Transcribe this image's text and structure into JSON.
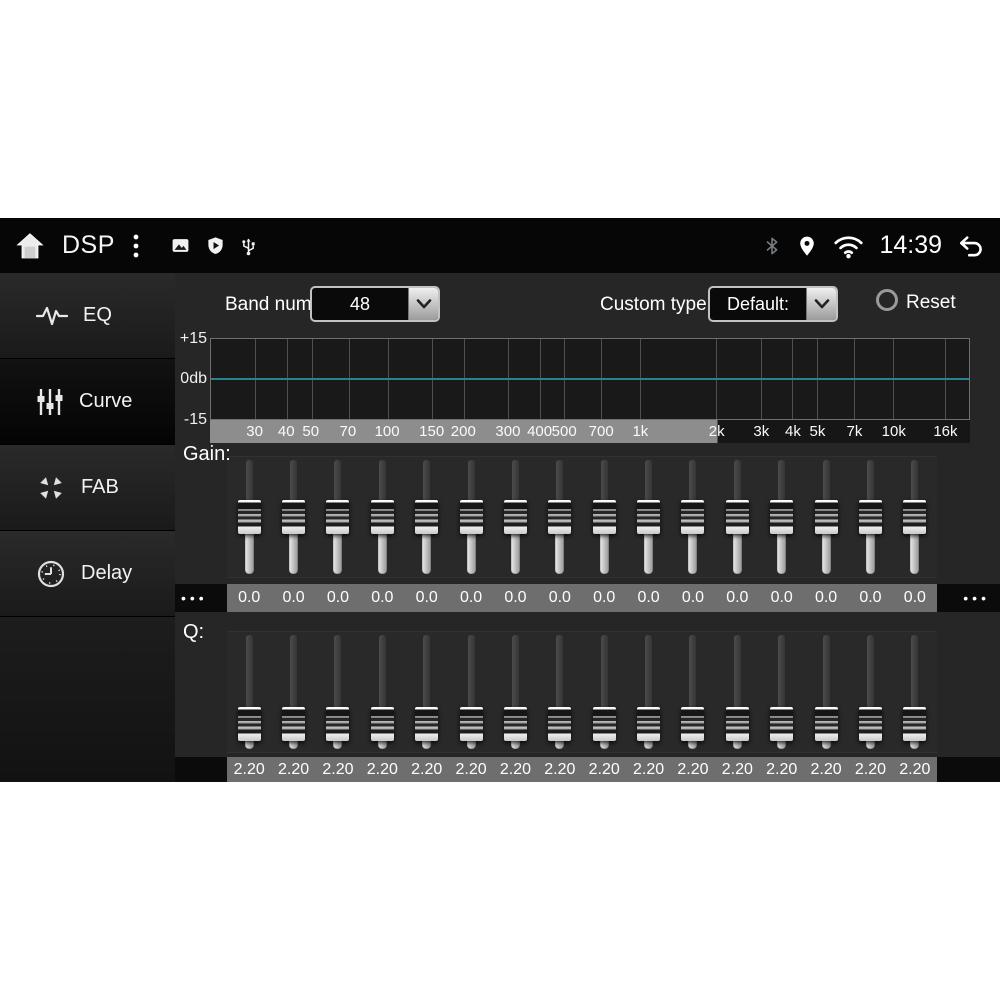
{
  "status_bar": {
    "title": "DSP",
    "time": "14:39"
  },
  "sidebar": {
    "items": [
      {
        "label": "EQ",
        "selected": false
      },
      {
        "label": "Curve",
        "selected": true
      },
      {
        "label": "FAB",
        "selected": false
      },
      {
        "label": "Delay",
        "selected": false
      }
    ]
  },
  "controls": {
    "band_num_label": "Band num:",
    "band_num_value": "48",
    "custom_type_label": "Custom type:",
    "custom_type_value": "Default:",
    "reset_label": "Reset"
  },
  "graph": {
    "y_axis_labels": [
      "+15",
      "0db",
      "-15"
    ],
    "freqs": [
      {
        "f": 30,
        "label": "30"
      },
      {
        "f": 40,
        "label": "40"
      },
      {
        "f": 50,
        "label": "50"
      },
      {
        "f": 70,
        "label": "70"
      },
      {
        "f": 100,
        "label": "100"
      },
      {
        "f": 150,
        "label": "150"
      },
      {
        "f": 200,
        "label": "200"
      },
      {
        "f": 300,
        "label": "300"
      },
      {
        "f": 400,
        "label": "400"
      },
      {
        "f": 500,
        "label": "500"
      },
      {
        "f": 700,
        "label": "700"
      },
      {
        "f": 1000,
        "label": "1k"
      },
      {
        "f": 2000,
        "label": "2k"
      },
      {
        "f": 3000,
        "label": "3k"
      },
      {
        "f": 4000,
        "label": "4k"
      },
      {
        "f": 5000,
        "label": "5k"
      },
      {
        "f": 7000,
        "label": "7k"
      },
      {
        "f": 10000,
        "label": "10k"
      },
      {
        "f": 16000,
        "label": "16k"
      }
    ],
    "curve_db": 0,
    "zero_line_color": "#2c8191",
    "visible_range_fraction": 0.668
  },
  "gain": {
    "label": "Gain:",
    "more": "•••",
    "values": [
      "0.0",
      "0.0",
      "0.0",
      "0.0",
      "0.0",
      "0.0",
      "0.0",
      "0.0",
      "0.0",
      "0.0",
      "0.0",
      "0.0",
      "0.0",
      "0.0",
      "0.0",
      "0.0"
    ]
  },
  "q": {
    "label": "Q:",
    "values": [
      "2.20",
      "2.20",
      "2.20",
      "2.20",
      "2.20",
      "2.20",
      "2.20",
      "2.20",
      "2.20",
      "2.20",
      "2.20",
      "2.20",
      "2.20",
      "2.20",
      "2.20",
      "2.20"
    ]
  },
  "colors": {
    "axis_light": "#8d8d8d",
    "axis_dark": "#161616",
    "value_strip": "#6e6e6e",
    "main_bg": "#262626",
    "graph_bg": "#191919"
  }
}
